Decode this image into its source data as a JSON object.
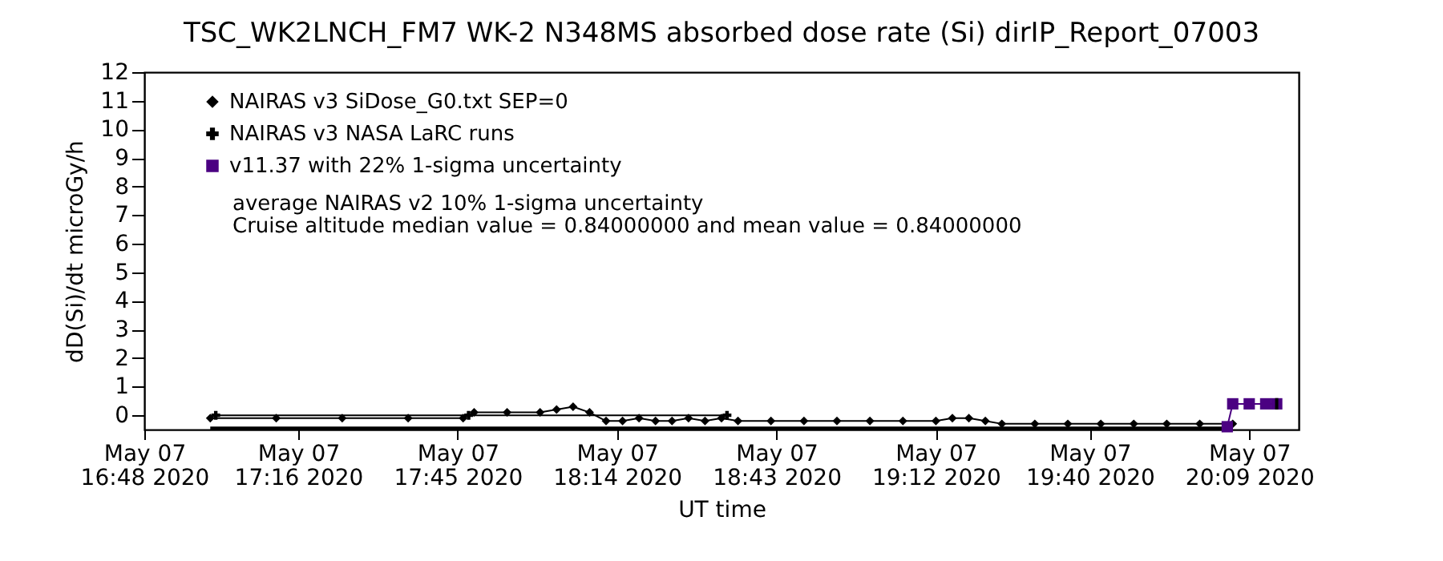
{
  "chart_data": {
    "type": "line",
    "title": "TSC_WK2LNCH_FM7 WK-2 N348MS absorbed dose rate (Si) dirIP_Report_07003",
    "xlabel": "UT time",
    "ylabel": "dD(Si)/dt microGy/h",
    "xlim": [
      "2020-05-07T16:48",
      "2020-05-07T20:18"
    ],
    "xticks": [
      {
        "value": "2020-05-07T16:48",
        "label": "May 07\n16:48 2020"
      },
      {
        "value": "2020-05-07T17:16",
        "label": "May 07\n17:16 2020"
      },
      {
        "value": "2020-05-07T17:45",
        "label": "May 07\n17:45 2020"
      },
      {
        "value": "2020-05-07T18:14",
        "label": "May 07\n18:14 2020"
      },
      {
        "value": "2020-05-07T18:43",
        "label": "May 07\n18:43 2020"
      },
      {
        "value": "2020-05-07T19:12",
        "label": "May 07\n19:12 2020"
      },
      {
        "value": "2020-05-07T19:40",
        "label": "May 07\n19:40 2020"
      },
      {
        "value": "2020-05-07T20:09",
        "label": "May 07\n20:09 2020"
      }
    ],
    "ylim": [
      -0.5,
      12
    ],
    "yticks": [
      0,
      1,
      2,
      3,
      4,
      5,
      6,
      7,
      8,
      9,
      10,
      11,
      12
    ],
    "grid": false,
    "legend": "top left",
    "line_style": "solid",
    "series": [
      {
        "name": "NAIRAS v3 SiDose_G0.txt SEP=0",
        "color": "#000000",
        "marker": "diamond",
        "x": [
          "2020-05-07T17:00",
          "2020-05-07T17:12",
          "2020-05-07T17:24",
          "2020-05-07T17:36",
          "2020-05-07T17:46",
          "2020-05-07T17:48",
          "2020-05-07T17:54",
          "2020-05-07T18:00",
          "2020-05-07T18:03",
          "2020-05-07T18:06",
          "2020-05-07T18:09",
          "2020-05-07T18:12",
          "2020-05-07T18:15",
          "2020-05-07T18:18",
          "2020-05-07T18:21",
          "2020-05-07T18:24",
          "2020-05-07T18:27",
          "2020-05-07T18:30",
          "2020-05-07T18:33",
          "2020-05-07T18:36",
          "2020-05-07T18:42",
          "2020-05-07T18:48",
          "2020-05-07T18:54",
          "2020-05-07T19:00",
          "2020-05-07T19:06",
          "2020-05-07T19:12",
          "2020-05-07T19:15",
          "2020-05-07T19:18",
          "2020-05-07T19:21",
          "2020-05-07T19:24",
          "2020-05-07T19:30",
          "2020-05-07T19:36",
          "2020-05-07T19:42",
          "2020-05-07T19:48",
          "2020-05-07T19:54",
          "2020-05-07T20:00",
          "2020-05-07T20:06"
        ],
        "values": [
          -0.1,
          -0.1,
          -0.1,
          -0.1,
          -0.1,
          0.1,
          0.1,
          0.1,
          0.2,
          0.3,
          0.1,
          -0.2,
          -0.2,
          -0.1,
          -0.2,
          -0.2,
          -0.1,
          -0.2,
          -0.1,
          -0.2,
          -0.2,
          -0.2,
          -0.2,
          -0.2,
          -0.2,
          -0.2,
          -0.1,
          -0.1,
          -0.2,
          -0.3,
          -0.3,
          -0.3,
          -0.3,
          -0.3,
          -0.3,
          -0.3,
          -0.3
        ]
      },
      {
        "name": "NAIRAS v3 NASA LaRC runs",
        "color": "#000000",
        "marker": "cross",
        "x": [
          "2020-05-07T17:01",
          "2020-05-07T17:47",
          "2020-05-07T18:34"
        ],
        "values": [
          0.0,
          0.0,
          0.0
        ]
      },
      {
        "name": "v11.37 with 22% 1-sigma uncertainty",
        "color": "#4b0082",
        "marker": "square",
        "x": [
          "2020-05-07T20:05",
          "2020-05-07T20:06",
          "2020-05-07T20:09",
          "2020-05-07T20:12",
          "2020-05-07T20:14"
        ],
        "values": [
          -0.4,
          0.4,
          0.4,
          0.4,
          0.4
        ],
        "errors": [
          null,
          null,
          null,
          null,
          0.2
        ]
      },
      {
        "color": "#000000",
        "marker": "none",
        "x": [
          "2020-05-07T17:00",
          "2020-05-07T20:06"
        ],
        "values": [
          -0.45,
          -0.45
        ]
      }
    ],
    "annotations": [
      "average NAIRAS v2 10% 1-sigma uncertainty",
      "Cruise altitude median value = 0.84000000 and mean value = 0.84000000"
    ]
  }
}
